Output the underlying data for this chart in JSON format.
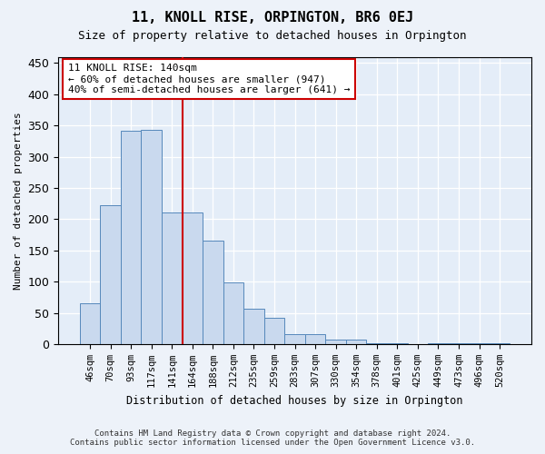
{
  "title": "11, KNOLL RISE, ORPINGTON, BR6 0EJ",
  "subtitle": "Size of property relative to detached houses in Orpington",
  "xlabel": "Distribution of detached houses by size in Orpington",
  "ylabel": "Number of detached properties",
  "bar_labels": [
    "46sqm",
    "70sqm",
    "93sqm",
    "117sqm",
    "141sqm",
    "164sqm",
    "188sqm",
    "212sqm",
    "235sqm",
    "259sqm",
    "283sqm",
    "307sqm",
    "330sqm",
    "354sqm",
    "378sqm",
    "401sqm",
    "425sqm",
    "449sqm",
    "473sqm",
    "496sqm",
    "520sqm"
  ],
  "bar_values": [
    65,
    222,
    342,
    343,
    210,
    210,
    165,
    99,
    57,
    42,
    16,
    16,
    7,
    7,
    2,
    2,
    0,
    1,
    1,
    2,
    2
  ],
  "bar_color": "#c9d9ee",
  "bar_edge_color": "#5588bb",
  "vline_x": 4.5,
  "vline_color": "#cc0000",
  "annotation_text": "11 KNOLL RISE: 140sqm\n← 60% of detached houses are smaller (947)\n40% of semi-detached houses are larger (641) →",
  "ylim": [
    0,
    460
  ],
  "yticks": [
    0,
    50,
    100,
    150,
    200,
    250,
    300,
    350,
    400,
    450
  ],
  "footer_line1": "Contains HM Land Registry data © Crown copyright and database right 2024.",
  "footer_line2": "Contains public sector information licensed under the Open Government Licence v3.0.",
  "bg_color": "#edf2f9",
  "plot_bg_color": "#e4edf8"
}
